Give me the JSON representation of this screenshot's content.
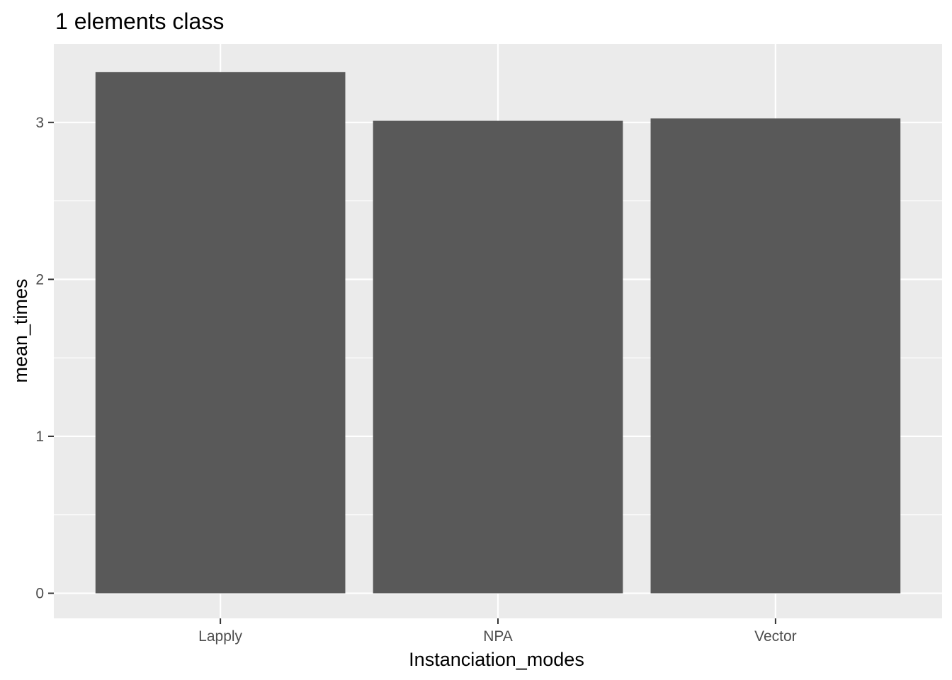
{
  "chart_data": {
    "type": "bar",
    "title": "1  elements  class",
    "xlabel": "Instanciation_modes",
    "ylabel": "mean_times",
    "categories": [
      "Lapply",
      "NPA",
      "Vector"
    ],
    "values": [
      3.32,
      3.01,
      3.025
    ],
    "ylim": [
      -0.16,
      3.5
    ],
    "yticks": [
      0,
      1,
      2,
      3
    ],
    "grid": true,
    "legend": "none",
    "colors": {
      "panel_bg": "#ebebeb",
      "grid": "#ffffff",
      "bar": "#595959",
      "tick": "#333333"
    }
  }
}
